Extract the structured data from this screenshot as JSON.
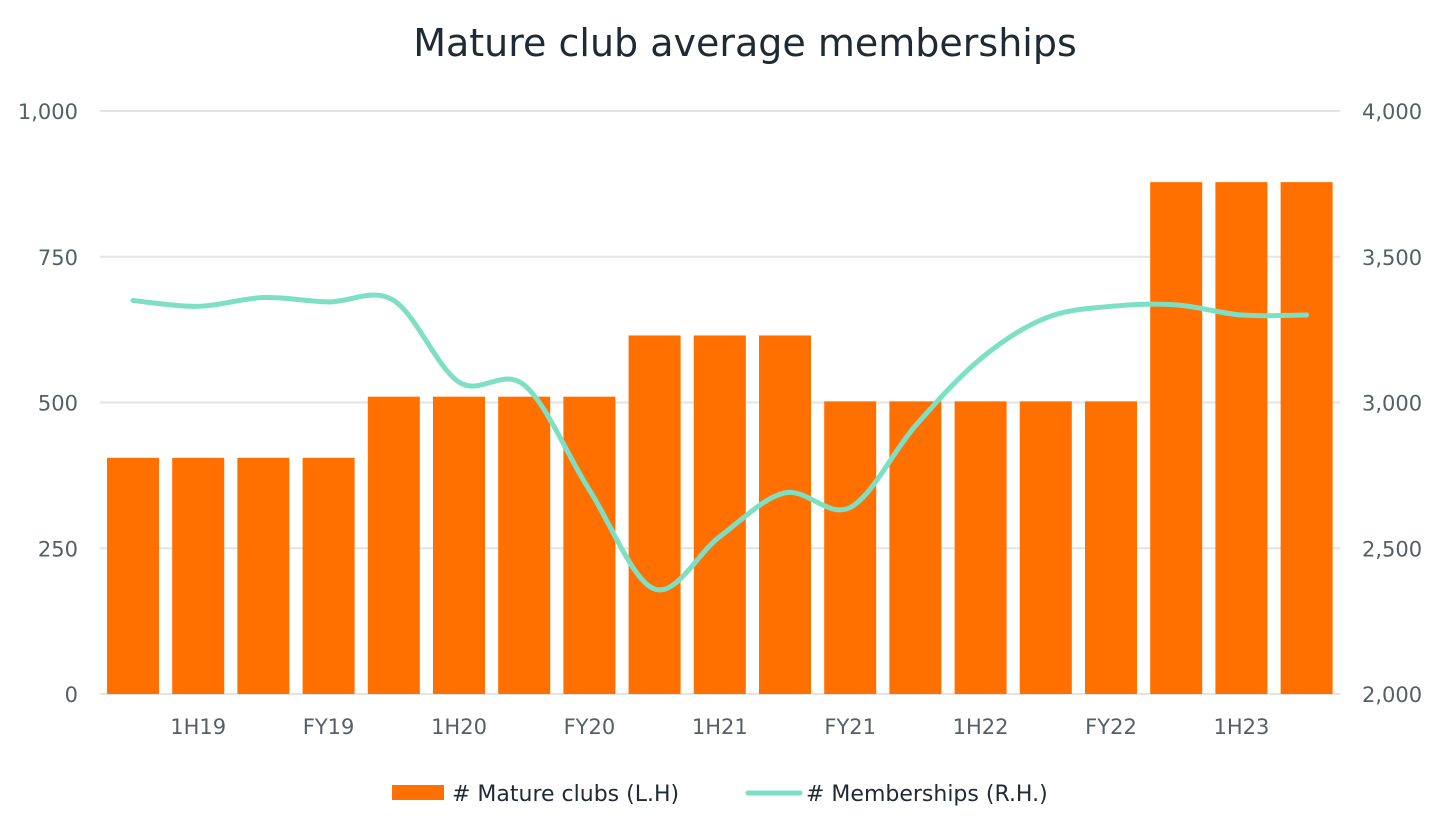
{
  "chart_data": {
    "type": "bar",
    "title": "Mature club average memberships",
    "bar_count": 19,
    "categories": [
      "",
      "1H19",
      "",
      "FY19",
      "",
      "1H20",
      "",
      "FY20",
      "",
      "1H21",
      "",
      "FY21",
      "",
      "1H22",
      "",
      "FY22",
      "",
      "1H23",
      ""
    ],
    "left_axis": {
      "ylim": [
        0,
        1000
      ],
      "ticks": [
        0,
        250,
        500,
        750,
        1000
      ],
      "tick_labels": [
        "0",
        "250",
        "500",
        "750",
        "1,000"
      ]
    },
    "right_axis": {
      "ylim": [
        2000,
        4000
      ],
      "ticks": [
        2000,
        2500,
        3000,
        3500,
        4000
      ],
      "tick_labels": [
        "2,000",
        "2,500",
        "3,000",
        "3,500",
        "4,000"
      ]
    },
    "series": [
      {
        "name": "# Mature clubs (L.H)",
        "type": "bar",
        "axis": "left",
        "color": "#ff7000",
        "values": [
          405,
          405,
          405,
          405,
          510,
          510,
          510,
          510,
          615,
          615,
          615,
          502,
          502,
          502,
          502,
          502,
          878,
          878,
          878
        ]
      },
      {
        "name": "# Memberships (R.H.)",
        "type": "line",
        "axis": "right",
        "color": "#7ddfc3",
        "values": [
          3350,
          3330,
          3360,
          3345,
          3350,
          3070,
          3060,
          2700,
          2360,
          2540,
          2690,
          2640,
          2920,
          3150,
          3290,
          3330,
          3335,
          3300,
          3300
        ]
      }
    ],
    "grid": true,
    "legend": "bottom-center"
  }
}
